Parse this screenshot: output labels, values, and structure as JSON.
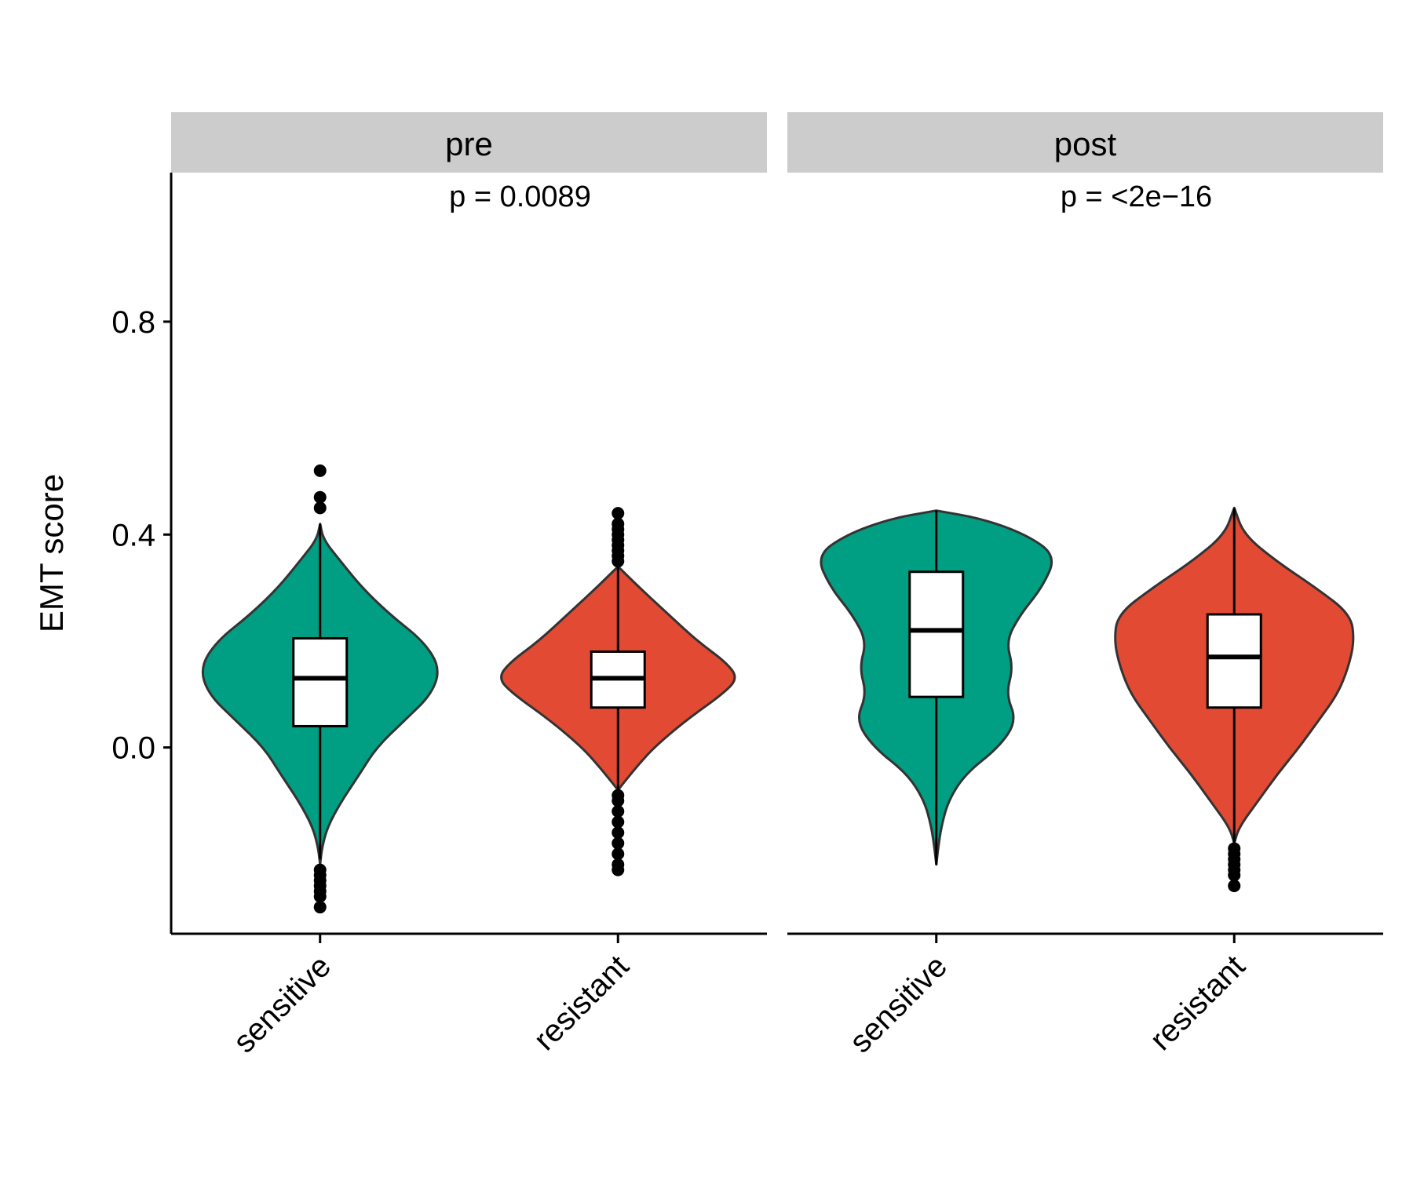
{
  "chart_data": {
    "type": "violin",
    "ylabel": "EMT score",
    "xlabel": "",
    "ylim": [
      -0.35,
      1.08
    ],
    "yticks": [
      0.0,
      0.4,
      0.8
    ],
    "ytick_labels": [
      "0.0",
      "0.4",
      "0.8"
    ],
    "categories": [
      "sensitive",
      "resistant"
    ],
    "colors": {
      "sensitive": "#009e82",
      "resistant": "#e34a33"
    },
    "panels": [
      {
        "label": "pre",
        "pvalue": "p = 0.0089",
        "groups": [
          {
            "category": "sensitive",
            "color": "#009e82",
            "box": {
              "q1": 0.04,
              "median": 0.13,
              "q3": 0.205,
              "whisker_low": -0.21,
              "whisker_high": 0.42
            },
            "density": [
              [
                -0.22,
                0.0
              ],
              [
                -0.19,
                0.015
              ],
              [
                -0.15,
                0.06
              ],
              [
                -0.1,
                0.18
              ],
              [
                -0.05,
                0.33
              ],
              [
                0.0,
                0.47
              ],
              [
                0.05,
                0.7
              ],
              [
                0.1,
                0.93
              ],
              [
                0.15,
                1.0
              ],
              [
                0.2,
                0.86
              ],
              [
                0.25,
                0.58
              ],
              [
                0.3,
                0.35
              ],
              [
                0.35,
                0.17
              ],
              [
                0.39,
                0.03
              ],
              [
                0.42,
                0.0
              ]
            ],
            "outliers": [
              0.45,
              0.47,
              0.52,
              -0.23,
              -0.24,
              -0.25,
              -0.26,
              -0.27,
              -0.28,
              -0.3
            ]
          },
          {
            "category": "resistant",
            "color": "#e34a33",
            "box": {
              "q1": 0.075,
              "median": 0.13,
              "q3": 0.18,
              "whisker_low": -0.08,
              "whisker_high": 0.34
            },
            "density": [
              [
                -0.08,
                0.0
              ],
              [
                -0.06,
                0.07
              ],
              [
                -0.03,
                0.18
              ],
              [
                0.0,
                0.3
              ],
              [
                0.05,
                0.56
              ],
              [
                0.1,
                0.87
              ],
              [
                0.13,
                1.0
              ],
              [
                0.16,
                0.9
              ],
              [
                0.2,
                0.66
              ],
              [
                0.25,
                0.42
              ],
              [
                0.3,
                0.18
              ],
              [
                0.34,
                0.0
              ]
            ],
            "outliers": [
              0.35,
              0.36,
              0.37,
              0.38,
              0.39,
              0.4,
              0.41,
              0.42,
              0.44,
              -0.09,
              -0.1,
              -0.12,
              -0.14,
              -0.16,
              -0.18,
              -0.2,
              -0.22,
              -0.23
            ]
          }
        ]
      },
      {
        "label": "post",
        "pvalue": "p = <2e−16",
        "groups": [
          {
            "category": "sensitive",
            "color": "#009e82",
            "box": {
              "q1": 0.095,
              "median": 0.22,
              "q3": 0.33,
              "whisker_low": -0.22,
              "whisker_high": 0.445
            },
            "density": [
              [
                -0.22,
                0.0
              ],
              [
                -0.19,
                0.015
              ],
              [
                -0.15,
                0.04
              ],
              [
                -0.1,
                0.1
              ],
              [
                -0.05,
                0.24
              ],
              [
                0.0,
                0.52
              ],
              [
                0.05,
                0.67
              ],
              [
                0.1,
                0.58
              ],
              [
                0.15,
                0.64
              ],
              [
                0.2,
                0.58
              ],
              [
                0.25,
                0.7
              ],
              [
                0.3,
                0.88
              ],
              [
                0.36,
                1.0
              ],
              [
                0.4,
                0.75
              ],
              [
                0.43,
                0.38
              ],
              [
                0.445,
                0.0
              ]
            ],
            "outliers": []
          },
          {
            "category": "resistant",
            "color": "#e34a33",
            "box": {
              "q1": 0.075,
              "median": 0.17,
              "q3": 0.25,
              "whisker_low": -0.18,
              "whisker_high": 0.45
            },
            "density": [
              [
                -0.18,
                0.0
              ],
              [
                -0.15,
                0.04
              ],
              [
                -0.1,
                0.2
              ],
              [
                -0.05,
                0.36
              ],
              [
                0.0,
                0.54
              ],
              [
                0.05,
                0.7
              ],
              [
                0.1,
                0.86
              ],
              [
                0.15,
                0.95
              ],
              [
                0.2,
                1.0
              ],
              [
                0.25,
                0.97
              ],
              [
                0.3,
                0.68
              ],
              [
                0.35,
                0.35
              ],
              [
                0.4,
                0.08
              ],
              [
                0.45,
                0.0
              ]
            ],
            "outliers": [
              -0.19,
              -0.2,
              -0.21,
              -0.22,
              -0.23,
              -0.24,
              -0.26
            ]
          }
        ]
      }
    ]
  }
}
